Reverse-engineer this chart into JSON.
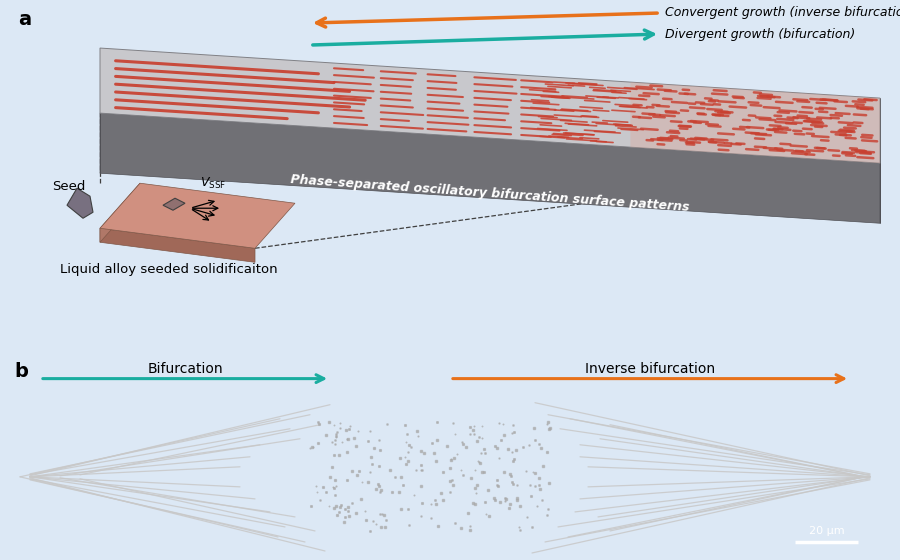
{
  "bg_color": "#dce8f5",
  "label_a": "a",
  "label_b": "b",
  "convergent_text": "Convergent growth (inverse bifurcation)",
  "divergent_text": "Divergent growth (bifurcation)",
  "phase_sep_text": "Phase-separated oscillatory bifurcation surface patterns",
  "seed_text": "Seed",
  "vssf_text": "$V_{\\mathrm{SSF}}$",
  "liquid_alloy_text": "Liquid alloy seeded solidificaiton",
  "bifurcation_text": "Bifurcation",
  "inverse_bif_text": "Inverse bifurcation",
  "scale_bar_text": "20 μm",
  "orange_color": "#E8711A",
  "teal_color": "#1AADA0",
  "red_color": "#C84030",
  "slab_top_color": "#C8C8CC",
  "slab_front_color": "#707075",
  "slab_side_color": "#888890",
  "slab_right_color": "#D4D4D8",
  "seed_slab_top": "#D09080",
  "seed_slab_front": "#A06858",
  "seed_slab_side": "#B07868",
  "seed_crystal_color": "#787080",
  "micro_bg": "#1e1e1e",
  "micro_line_color": "#c8c8c8"
}
